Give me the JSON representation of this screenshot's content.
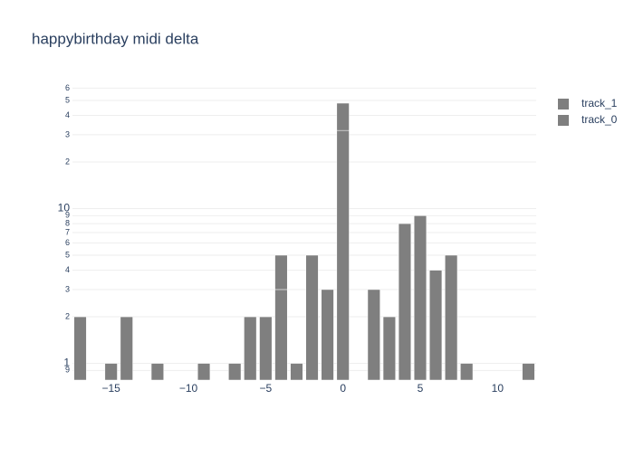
{
  "chart_data": {
    "type": "bar",
    "title": "happybirthday midi delta",
    "barmode": "stack",
    "log_y": true,
    "grid": true,
    "legend": "right",
    "x": [
      -17,
      -16,
      -15,
      -14,
      -13,
      -12,
      -11,
      -10,
      -9,
      -8,
      -7,
      -6,
      -5,
      -4,
      -3,
      -2,
      -1,
      0,
      1,
      2,
      3,
      4,
      5,
      6,
      7,
      8,
      9,
      10,
      11,
      12
    ],
    "series": [
      {
        "name": "track_0",
        "color": "#7f7f7f",
        "values": [
          2,
          null,
          1,
          2,
          null,
          1,
          null,
          null,
          1,
          null,
          1,
          2,
          2,
          3,
          1,
          5,
          3,
          32,
          null,
          3,
          2,
          8,
          9,
          4,
          5,
          1,
          null,
          null,
          null,
          1
        ]
      },
      {
        "name": "track_1",
        "color": "#7f7f7f",
        "values": [
          null,
          null,
          null,
          null,
          null,
          null,
          null,
          null,
          null,
          null,
          null,
          null,
          null,
          2,
          null,
          null,
          null,
          16,
          null,
          null,
          null,
          null,
          null,
          null,
          null,
          null,
          null,
          null,
          null,
          null
        ]
      }
    ],
    "xlim": [
      -17.5,
      12.5
    ],
    "xticks": [
      {
        "value": -15,
        "label": "−15"
      },
      {
        "value": -10,
        "label": "−10"
      },
      {
        "value": -5,
        "label": "−5"
      },
      0,
      5,
      10
    ],
    "ylim": [
      0.78,
      62
    ],
    "yticks": [
      {
        "value": 0.9,
        "label": "9"
      },
      1,
      2,
      3,
      4,
      5,
      6,
      7,
      8,
      9,
      10,
      {
        "value": 20,
        "label": "2"
      },
      {
        "value": 30,
        "label": "3"
      },
      {
        "value": 40,
        "label": "4"
      },
      {
        "value": 50,
        "label": "5"
      },
      {
        "value": 60,
        "label": "6"
      }
    ]
  }
}
